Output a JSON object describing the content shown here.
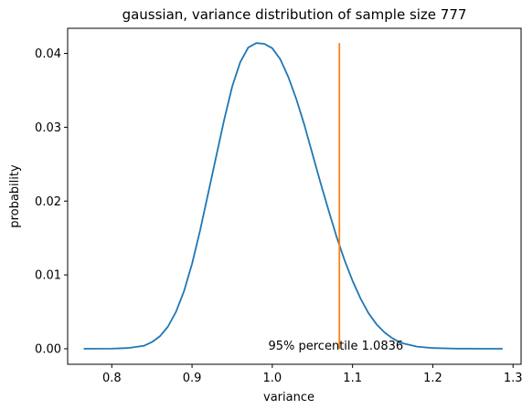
{
  "chart_data": {
    "type": "line",
    "title": "gaussian, variance distribution of sample size 777",
    "xlabel": "variance",
    "ylabel": "probability",
    "xlim": [
      0.745,
      1.31
    ],
    "ylim": [
      -0.0021,
      0.0434
    ],
    "xticks": [
      0.8,
      0.9,
      1.0,
      1.1,
      1.2,
      1.3
    ],
    "xtick_labels": [
      "0.8",
      "0.9",
      "1.0",
      "1.1",
      "1.2",
      "1.3"
    ],
    "yticks": [
      0.0,
      0.01,
      0.02,
      0.03,
      0.04
    ],
    "ytick_labels": [
      "0.00",
      "0.01",
      "0.02",
      "0.03",
      "0.04"
    ],
    "grid": false,
    "series": [
      {
        "color": "#1f77b4",
        "x": [
          0.765,
          0.8,
          0.82,
          0.84,
          0.85,
          0.86,
          0.87,
          0.88,
          0.89,
          0.9,
          0.91,
          0.92,
          0.93,
          0.94,
          0.95,
          0.96,
          0.97,
          0.98,
          0.99,
          0.995,
          1.0,
          1.01,
          1.02,
          1.03,
          1.04,
          1.05,
          1.06,
          1.07,
          1.08,
          1.09,
          1.1,
          1.11,
          1.12,
          1.13,
          1.14,
          1.15,
          1.16,
          1.18,
          1.2,
          1.23,
          1.26,
          1.287
        ],
        "y": [
          0.0,
          2e-05,
          0.0001,
          0.0004,
          0.0009,
          0.0017,
          0.003,
          0.005,
          0.0078,
          0.0115,
          0.016,
          0.021,
          0.026,
          0.031,
          0.0355,
          0.0388,
          0.0408,
          0.0414,
          0.0413,
          0.041,
          0.0407,
          0.0392,
          0.0368,
          0.0338,
          0.0303,
          0.0264,
          0.0225,
          0.0188,
          0.0152,
          0.012,
          0.0092,
          0.0068,
          0.0048,
          0.0033,
          0.0022,
          0.0014,
          0.0008,
          0.0003,
          0.0001,
          2e-05,
          0.0,
          0.0
        ]
      }
    ],
    "vline": {
      "x": 1.0836,
      "y_from": 0.0,
      "y_to": 0.0414,
      "color": "#ff7f0e"
    },
    "annotation": {
      "text": "95% percentile 1.0836",
      "x": 0.995,
      "y": 0.0
    }
  }
}
